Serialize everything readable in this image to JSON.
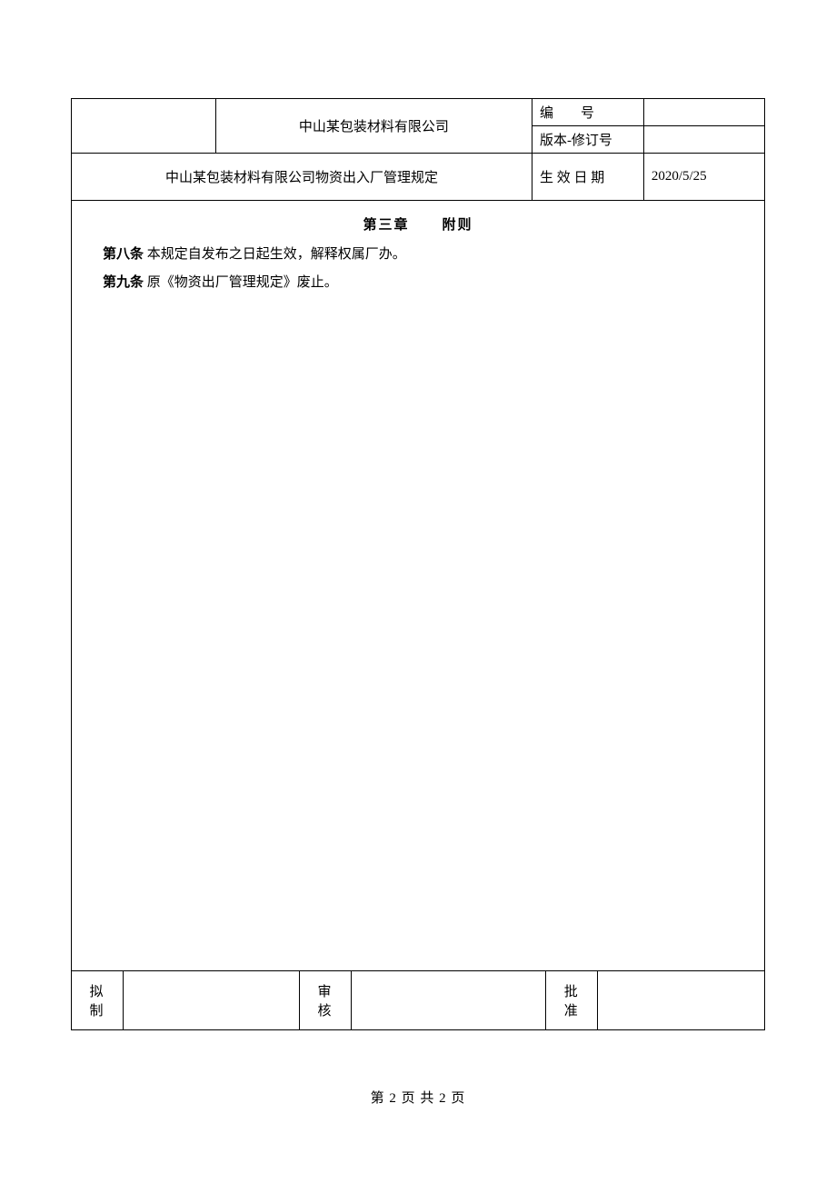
{
  "header": {
    "company_name": "中山某包装材料有限公司",
    "doc_title": "中山某包装材料有限公司物资出入厂管理规定",
    "fields": {
      "doc_number_label": "编　　号",
      "doc_number_value": "",
      "version_label": "版本-修订号",
      "version_value": "",
      "effective_date_label": "生 效 日 期",
      "effective_date_value": "2020/5/25"
    }
  },
  "content": {
    "chapter_label": "第三章",
    "chapter_title": "附则",
    "articles": [
      {
        "label": "第八条",
        "text": "本规定自发布之日起生效，解释权属厂办。"
      },
      {
        "label": "第九条",
        "text": "原《物资出厂管理规定》废止。"
      }
    ]
  },
  "footer": {
    "drafted_label": "拟 制",
    "drafted_value": "",
    "reviewed_label": "审 核",
    "reviewed_value": "",
    "approved_label": "批 准",
    "approved_value": ""
  },
  "page_indicator": "第 2 页 共 2 页",
  "colors": {
    "border": "#000000",
    "background": "#ffffff",
    "text": "#000000"
  }
}
